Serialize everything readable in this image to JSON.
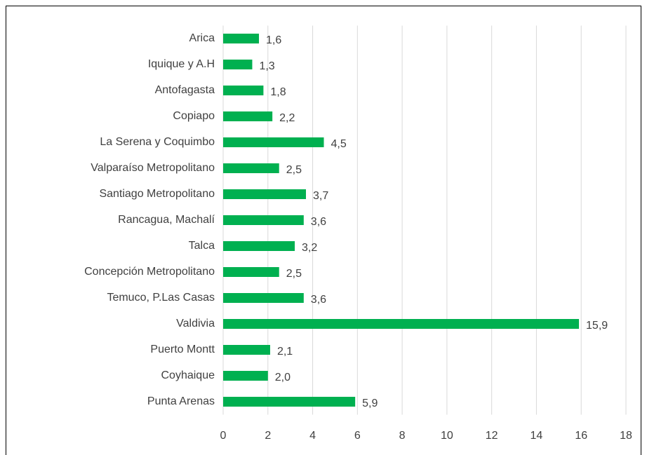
{
  "chart_data": {
    "type": "bar",
    "orientation": "horizontal",
    "categories": [
      "Arica",
      "Iquique y A.H",
      "Antofagasta",
      "Copiapo",
      "La Serena y Coquimbo",
      "Valparaíso Metropolitano",
      "Santiago Metropolitano",
      "Rancagua, Machalí",
      "Talca",
      "Concepción Metropolitano",
      "Temuco, P.Las Casas",
      "Valdivia",
      "Puerto Montt",
      "Coyhaique",
      "Punta Arenas"
    ],
    "values": [
      1.6,
      1.3,
      1.8,
      2.2,
      4.5,
      2.5,
      3.7,
      3.6,
      3.2,
      2.5,
      3.6,
      15.9,
      2.1,
      2.0,
      5.9
    ],
    "value_labels": [
      "1,6",
      "1,3",
      "1,8",
      "2,2",
      "4,5",
      "2,5",
      "3,7",
      "3,6",
      "3,2",
      "2,5",
      "3,6",
      "15,9",
      "2,1",
      "2,0",
      "5,9"
    ],
    "color": "#00b050",
    "xlim": [
      0,
      18
    ],
    "xticks": [
      0,
      2,
      4,
      6,
      8,
      10,
      12,
      14,
      16,
      18
    ],
    "grid": true
  }
}
